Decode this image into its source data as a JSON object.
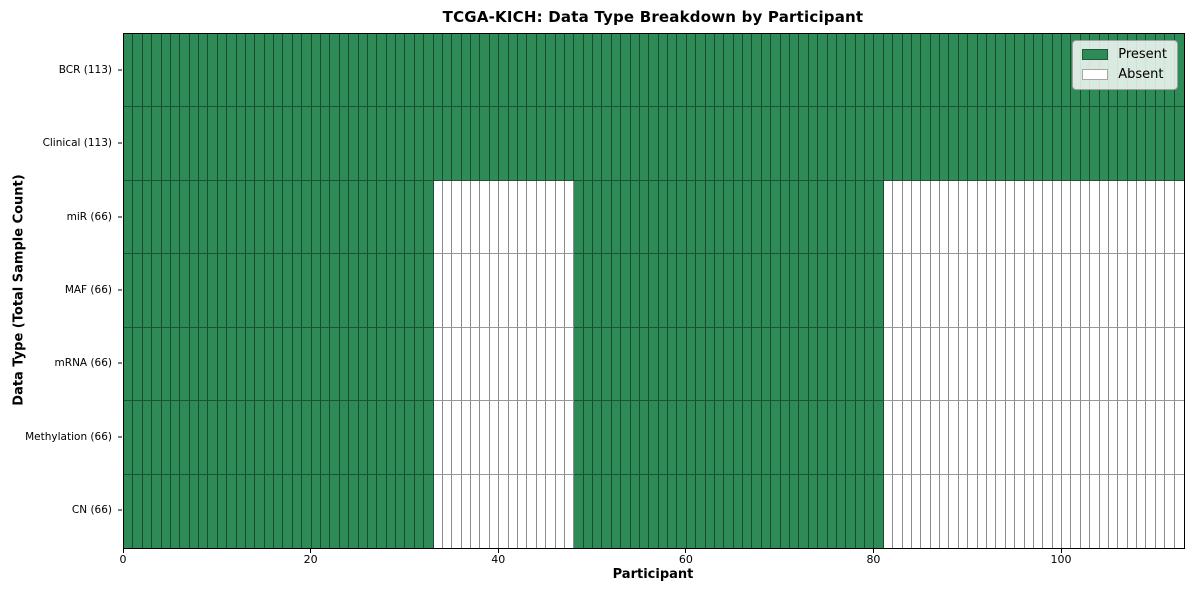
{
  "chart_data": {
    "type": "heatmap",
    "title": "TCGA-KICH: Data Type Breakdown by Participant",
    "xlabel": "Participant",
    "ylabel": "Data Type (Total Sample Count)",
    "x_range": [
      0,
      113
    ],
    "x_ticks": [
      0,
      20,
      40,
      60,
      80,
      100
    ],
    "n_participants": 113,
    "grid": true,
    "colors": {
      "present": "#2E8B57",
      "absent": "#FFFFFF",
      "cell_edge": "rgba(0,0,0,0.45)",
      "spine": "#000000"
    },
    "legend": {
      "position": "upper right",
      "entries": [
        {
          "label": "Present",
          "color": "#2E8B57"
        },
        {
          "label": "Absent",
          "color": "#FFFFFF"
        }
      ]
    },
    "rows": [
      {
        "label": "BCR (113)",
        "data_type": "BCR",
        "present_count": 113,
        "present_runs": [
          [
            0,
            113
          ]
        ]
      },
      {
        "label": "Clinical (113)",
        "data_type": "Clinical",
        "present_count": 113,
        "present_runs": [
          [
            0,
            113
          ]
        ]
      },
      {
        "label": "miR (66)",
        "data_type": "miR",
        "present_count": 66,
        "present_runs": [
          [
            0,
            33
          ],
          [
            48,
            81
          ]
        ]
      },
      {
        "label": "MAF (66)",
        "data_type": "MAF",
        "present_count": 66,
        "present_runs": [
          [
            0,
            33
          ],
          [
            48,
            81
          ]
        ]
      },
      {
        "label": "mRNA (66)",
        "data_type": "mRNA",
        "present_count": 66,
        "present_runs": [
          [
            0,
            33
          ],
          [
            48,
            81
          ]
        ]
      },
      {
        "label": "Methylation (66)",
        "data_type": "Methylation",
        "present_count": 66,
        "present_runs": [
          [
            0,
            33
          ],
          [
            48,
            81
          ]
        ]
      },
      {
        "label": "CN (66)",
        "data_type": "CN",
        "present_count": 66,
        "present_runs": [
          [
            0,
            33
          ],
          [
            48,
            81
          ]
        ]
      }
    ]
  }
}
